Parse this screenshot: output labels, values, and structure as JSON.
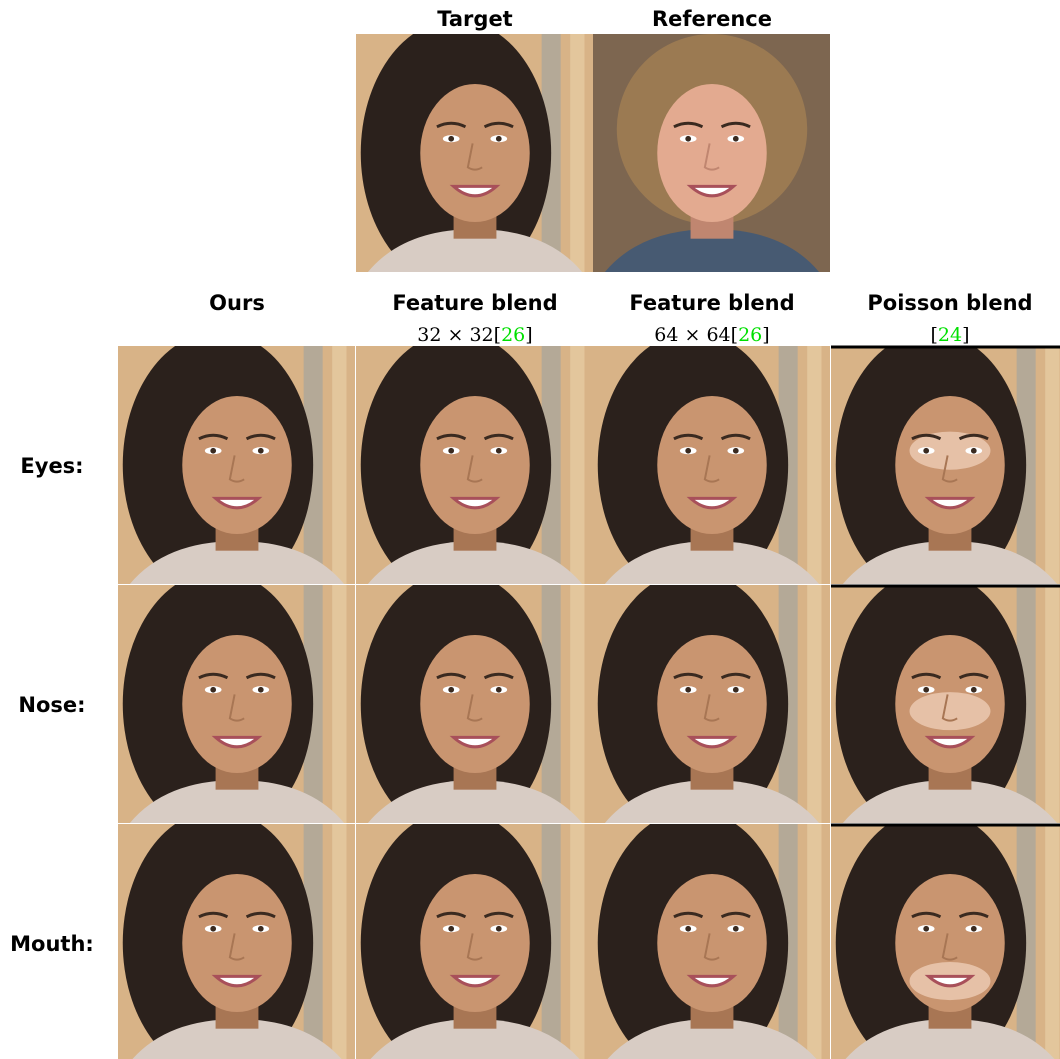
{
  "header": {
    "images": [
      {
        "label": "Target"
      },
      {
        "label": "Reference"
      }
    ]
  },
  "grid": {
    "columns": [
      {
        "title": "Ours"
      },
      {
        "title": "Feature blend",
        "subtitle": "32 × 32",
        "cite": [
          "[",
          "26",
          "]"
        ]
      },
      {
        "title": "Feature blend",
        "subtitle": "64 × 64",
        "cite": [
          "[",
          "26",
          "]"
        ]
      },
      {
        "title": "Poisson blend",
        "cite": [
          "[",
          "24",
          "]"
        ]
      }
    ],
    "rows": [
      {
        "label": "Eyes:"
      },
      {
        "label": "Nose:"
      },
      {
        "label": "Mouth:"
      }
    ]
  }
}
